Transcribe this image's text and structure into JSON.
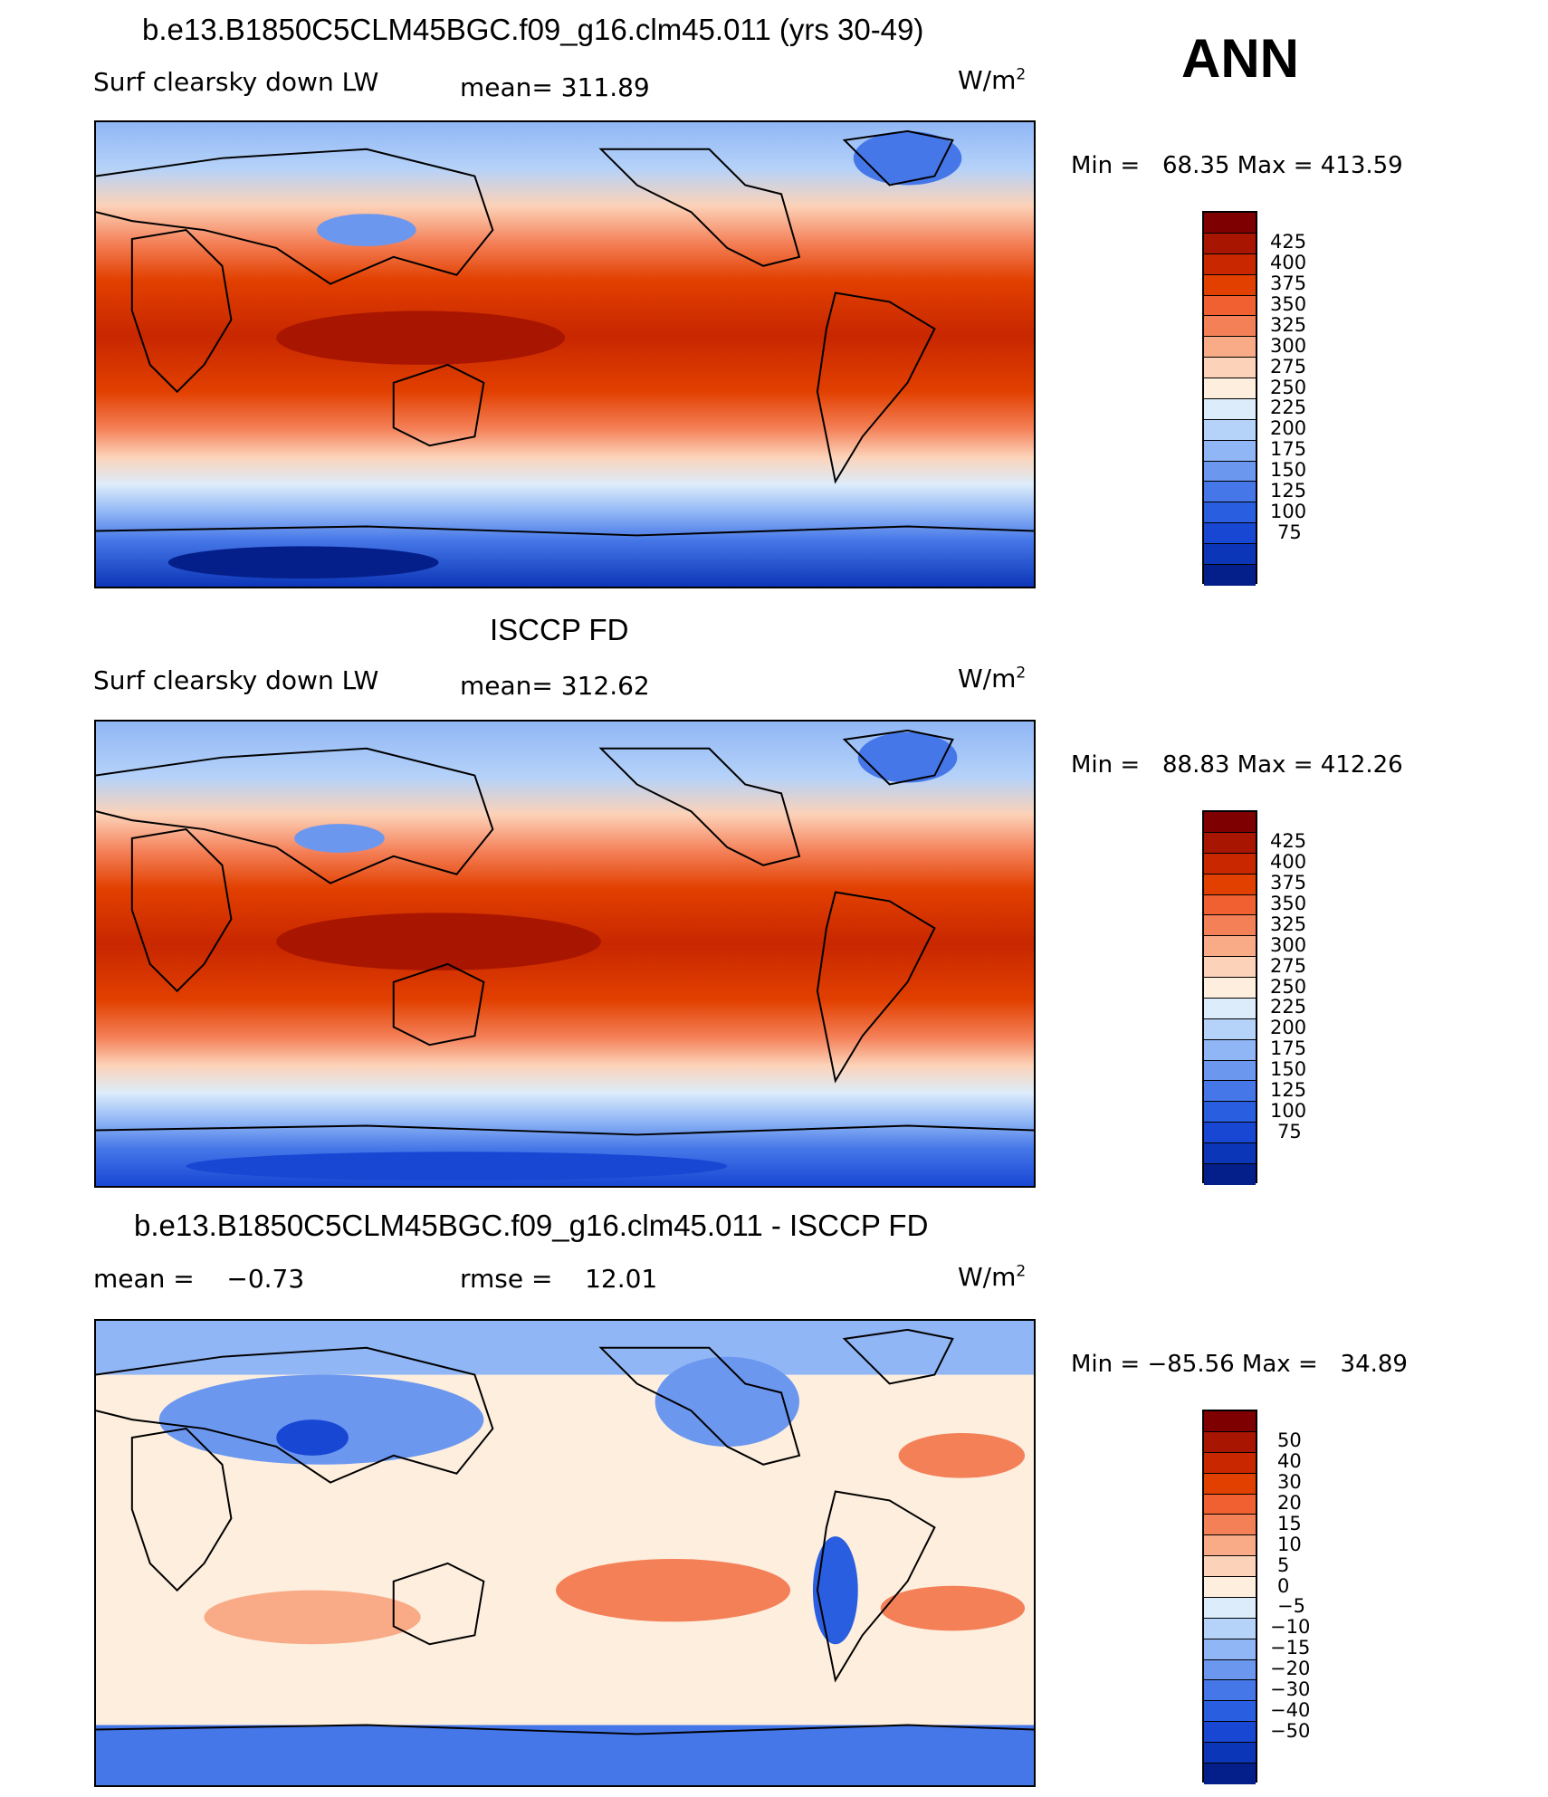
{
  "season": "ANN",
  "panels": [
    {
      "title": "b.e13.B1850C5CLM45BGC.f09_g16.clm45.011 (yrs 30-49)",
      "left_label": "Surf clearsky down LW",
      "stat_label": "mean= 311.89",
      "units": "W/m",
      "units_exp": "2",
      "minmax": "Min =   68.35 Max = 413.59",
      "colorbar": {
        "ticks": [
          "425",
          "400",
          "375",
          "350",
          "325",
          "300",
          "275",
          "250",
          "225",
          "200",
          "175",
          "150",
          "125",
          "100",
          "75"
        ],
        "colors": [
          "#7f0000",
          "#a81500",
          "#c82700",
          "#e24000",
          "#f06030",
          "#f48058",
          "#f9aa86",
          "#fcd2b8",
          "#fdeede",
          "#dcecfb",
          "#b5d2f9",
          "#90b6f5",
          "#6b97ef",
          "#4677e8",
          "#2a5ee0",
          "#1847d4",
          "#0c36b8",
          "#051f8a"
        ]
      }
    },
    {
      "title": "ISCCP FD",
      "left_label": "Surf clearsky down LW",
      "stat_label": "mean= 312.62",
      "units": "W/m",
      "units_exp": "2",
      "minmax": "Min =   88.83 Max = 412.26",
      "colorbar": {
        "ticks": [
          "425",
          "400",
          "375",
          "350",
          "325",
          "300",
          "275",
          "250",
          "225",
          "200",
          "175",
          "150",
          "125",
          "100",
          "75"
        ],
        "colors": [
          "#7f0000",
          "#a81500",
          "#c82700",
          "#e24000",
          "#f06030",
          "#f48058",
          "#f9aa86",
          "#fcd2b8",
          "#fdeede",
          "#dcecfb",
          "#b5d2f9",
          "#90b6f5",
          "#6b97ef",
          "#4677e8",
          "#2a5ee0",
          "#1847d4",
          "#0c36b8",
          "#051f8a"
        ]
      }
    },
    {
      "title": "b.e13.B1850C5CLM45BGC.f09_g16.clm45.011 - ISCCP FD",
      "left_label": "mean =    −0.73",
      "stat_label": "rmse =    12.01",
      "units": "W/m",
      "units_exp": "2",
      "minmax": "Min = −85.56 Max =   34.89",
      "colorbar": {
        "ticks": [
          "50",
          "40",
          "30",
          "20",
          "15",
          "10",
          "5",
          "0",
          "−5",
          "−10",
          "−15",
          "−20",
          "−30",
          "−40",
          "−50"
        ],
        "colors": [
          "#7f0000",
          "#a81500",
          "#c82700",
          "#e24000",
          "#f06030",
          "#f48058",
          "#f9aa86",
          "#fcd2b8",
          "#fdeede",
          "#dcecfb",
          "#b5d2f9",
          "#90b6f5",
          "#6b97ef",
          "#4677e8",
          "#2a5ee0",
          "#1847d4",
          "#0c36b8",
          "#051f8a"
        ]
      }
    }
  ]
}
